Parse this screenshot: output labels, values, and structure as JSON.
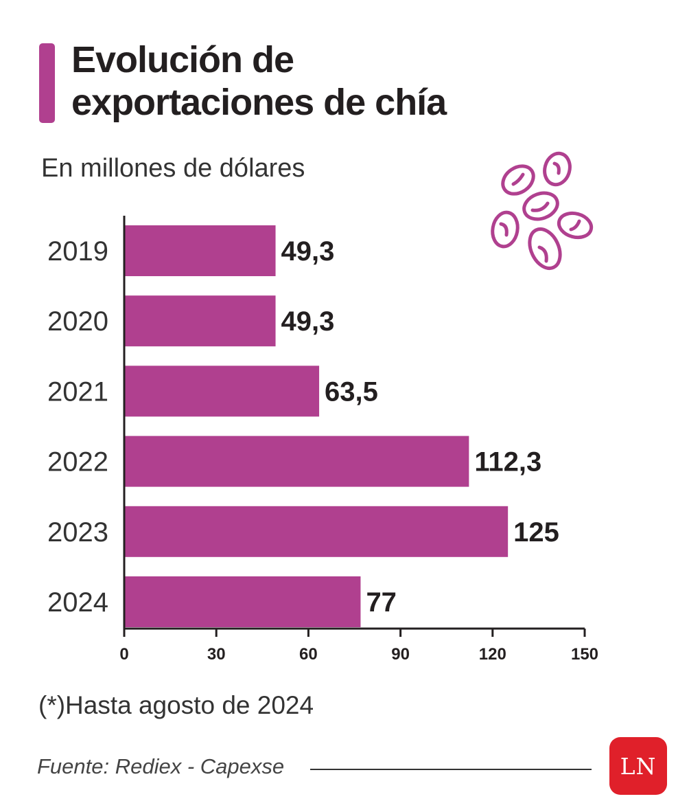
{
  "header": {
    "title_line1": "Evolución de",
    "title_line2": "exportaciones de chía",
    "subtitle": "En millones de dólares"
  },
  "chart_data": {
    "type": "bar",
    "orientation": "horizontal",
    "categories": [
      "2019",
      "2020",
      "2021",
      "2022",
      "2023",
      "2024"
    ],
    "values": [
      49.3,
      49.3,
      63.5,
      112.3,
      125,
      77
    ],
    "value_labels": [
      "49,3",
      "49,3",
      "63,5",
      "112,3",
      "125",
      "77"
    ],
    "xlim": [
      0,
      150
    ],
    "x_ticks": [
      0,
      30,
      60,
      90,
      120,
      150
    ],
    "x_tick_labels": [
      "0",
      "30",
      "60",
      "90",
      "120",
      "150"
    ],
    "grid": false,
    "bar_color": "#b0408f"
  },
  "footer": {
    "footnote": "(*)Hasta agosto de 2024",
    "source": "Fuente: Rediex - Capexse",
    "logo_text": "LN",
    "logo_color": "#e0202a"
  },
  "decoration": {
    "icon": "chia-seeds-icon",
    "color": "#b0408f"
  }
}
